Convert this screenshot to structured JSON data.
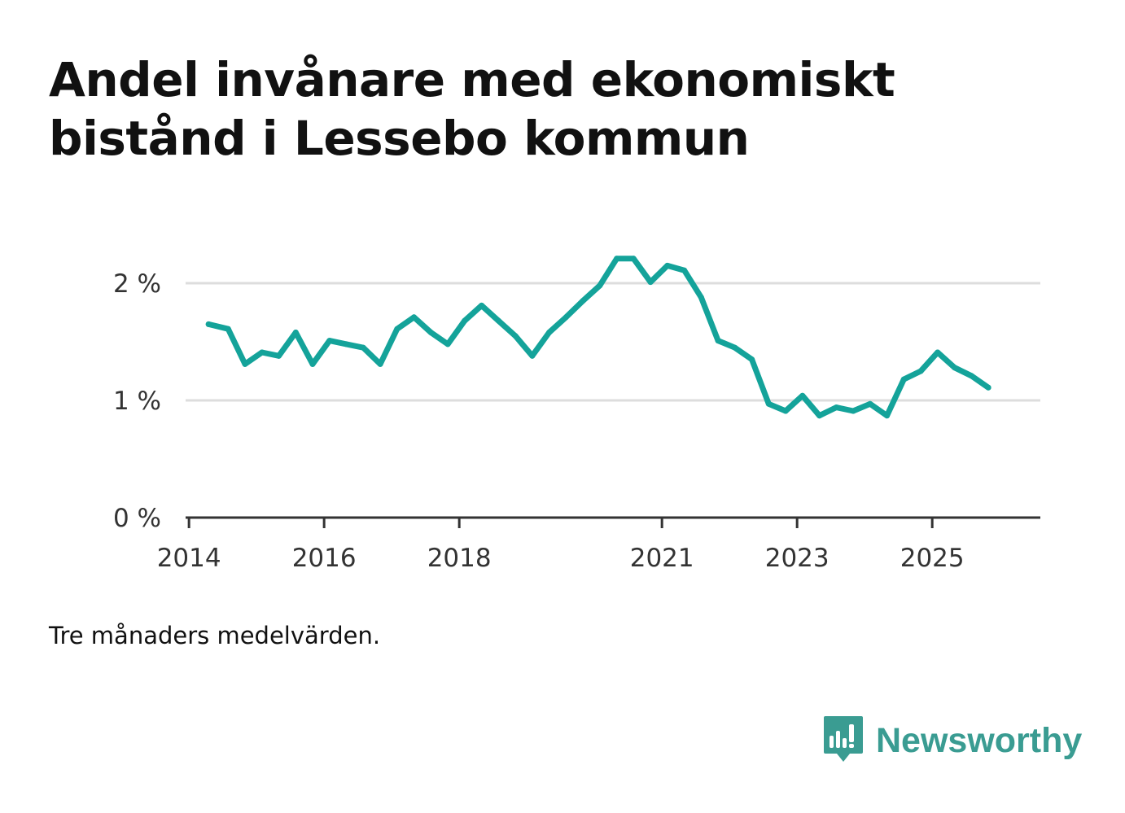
{
  "chart_data": {
    "type": "line",
    "title": "Andel invånare med ekonomiskt bistånd i Lessebo kommun",
    "xlabel": "",
    "ylabel": "",
    "note": "Tre månaders medelvärden.",
    "x_range": [
      2013.95,
      2026.6
    ],
    "ylim": [
      0,
      2.3
    ],
    "y_ticks": [
      {
        "value": 0,
        "label": "0 %"
      },
      {
        "value": 1,
        "label": "1 %"
      },
      {
        "value": 2,
        "label": "2 %"
      }
    ],
    "x_ticks": [
      {
        "value": 2014,
        "label": "2014"
      },
      {
        "value": 2016,
        "label": "2016"
      },
      {
        "value": 2018,
        "label": "2018"
      },
      {
        "value": 2021,
        "label": "2021"
      },
      {
        "value": 2023,
        "label": "2023"
      },
      {
        "value": 2025,
        "label": "2025"
      }
    ],
    "series": [
      {
        "name": "Andel invånare med ekonomiskt bistånd",
        "color": "#14a39a",
        "x": [
          2014.29,
          2014.58,
          2014.83,
          2015.08,
          2015.33,
          2015.58,
          2015.83,
          2016.08,
          2016.33,
          2016.58,
          2016.83,
          2017.08,
          2017.33,
          2017.58,
          2017.83,
          2018.08,
          2018.33,
          2018.58,
          2018.83,
          2019.08,
          2019.33,
          2019.58,
          2019.83,
          2020.08,
          2020.33,
          2020.58,
          2020.83,
          2021.08,
          2021.33,
          2021.58,
          2021.83,
          2022.08,
          2022.33,
          2022.58,
          2022.83,
          2023.08,
          2023.33,
          2023.58,
          2023.83,
          2024.08,
          2024.33,
          2024.58,
          2024.83,
          2025.08,
          2025.33,
          2025.58,
          2025.83
        ],
        "values": [
          1.65,
          1.61,
          1.31,
          1.41,
          1.38,
          1.58,
          1.31,
          1.51,
          1.48,
          1.45,
          1.31,
          1.61,
          1.71,
          1.58,
          1.48,
          1.68,
          1.81,
          1.68,
          1.55,
          1.38,
          1.58,
          1.71,
          1.85,
          1.98,
          2.21,
          2.21,
          2.01,
          2.15,
          2.11,
          1.88,
          1.51,
          1.45,
          1.35,
          0.97,
          0.91,
          1.04,
          0.87,
          0.94,
          0.91,
          0.97,
          0.87,
          1.18,
          1.25,
          1.41,
          1.28,
          1.21,
          1.11
        ]
      }
    ]
  },
  "brand": {
    "name": "Newsworthy",
    "icon": "newsworthy-logo-icon",
    "color": "#3a9c92"
  }
}
